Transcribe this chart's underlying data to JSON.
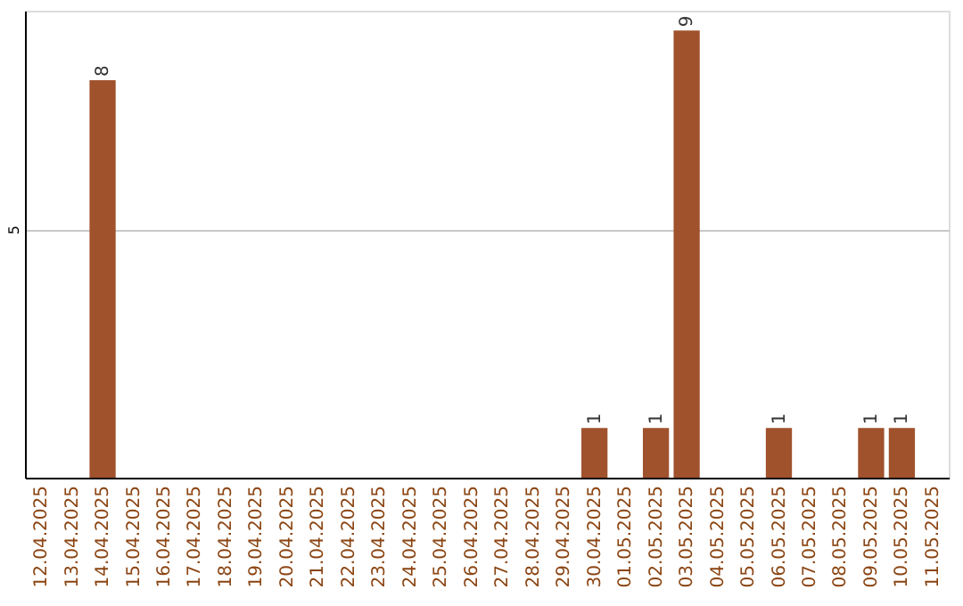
{
  "chart_data": {
    "type": "bar",
    "categories": [
      "12.04.2025",
      "13.04.2025",
      "14.04.2025",
      "15.04.2025",
      "16.04.2025",
      "17.04.2025",
      "18.04.2025",
      "19.04.2025",
      "20.04.2025",
      "21.04.2025",
      "22.04.2025",
      "23.04.2025",
      "24.04.2025",
      "25.04.2025",
      "26.04.2025",
      "27.04.2025",
      "28.04.2025",
      "29.04.2025",
      "30.04.2025",
      "01.05.2025",
      "02.05.2025",
      "03.05.2025",
      "04.05.2025",
      "05.05.2025",
      "06.05.2025",
      "07.05.2025",
      "08.05.2025",
      "09.05.2025",
      "10.05.2025",
      "11.05.2025"
    ],
    "values": [
      null,
      null,
      8,
      null,
      null,
      null,
      null,
      null,
      null,
      null,
      null,
      null,
      null,
      null,
      null,
      null,
      null,
      null,
      1,
      null,
      1,
      9,
      null,
      null,
      1,
      null,
      null,
      1,
      1,
      null
    ],
    "color": "#a0522d",
    "ylim": [
      0,
      9.4
    ],
    "yticks": [
      5
    ],
    "grid": "y",
    "data_labels": true
  }
}
